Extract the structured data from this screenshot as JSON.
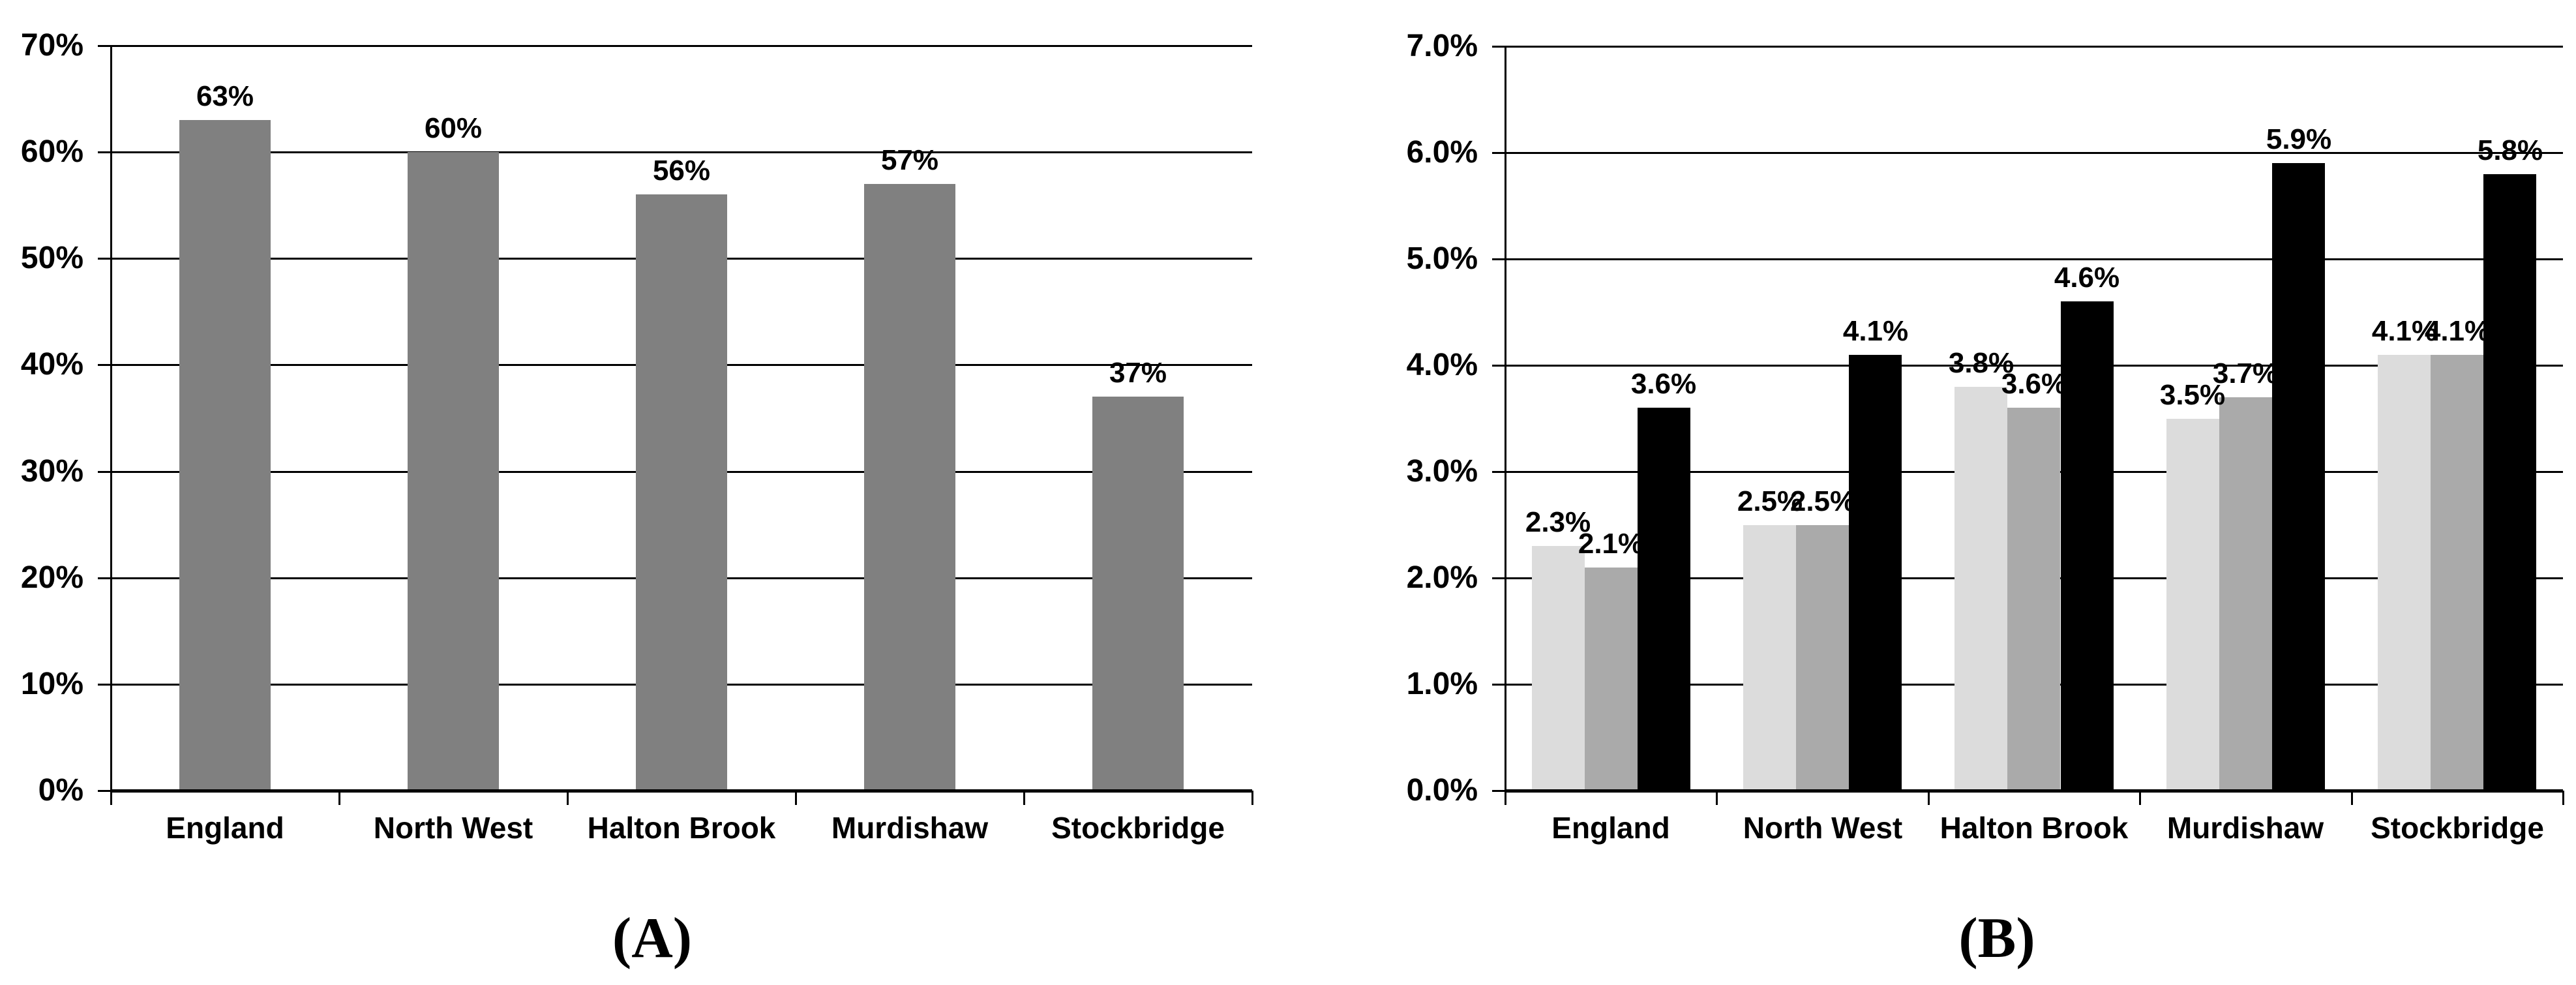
{
  "figure": {
    "background": "#FFFFFF",
    "text_color": "#000000",
    "axis_color": "#000000"
  },
  "chart_data": [
    {
      "panel": "A",
      "type": "bar",
      "title": "",
      "xlabel": "",
      "ylabel": "",
      "legend": "none",
      "grid": true,
      "caption": "(A)",
      "categories": [
        "England",
        "North West",
        "Halton Brook",
        "Murdishaw",
        "Stockbridge"
      ],
      "series": [
        {
          "name": "percentage",
          "color": "#808080",
          "values": [
            63,
            60,
            56,
            57,
            37
          ],
          "labels": [
            "63%",
            "60%",
            "56%",
            "57%",
            "37%"
          ]
        }
      ],
      "y_axis": {
        "min": 0,
        "max": 70,
        "step": 10,
        "tick_labels": [
          "0%",
          "10%",
          "20%",
          "30%",
          "40%",
          "50%",
          "60%",
          "70%"
        ]
      }
    },
    {
      "panel": "B",
      "type": "bar",
      "title": "",
      "xlabel": "",
      "ylabel": "",
      "legend": "none",
      "grid": true,
      "caption": "(B)",
      "categories": [
        "England",
        "North West",
        "Halton Brook",
        "Murdishaw",
        "Stockbridge"
      ],
      "series": [
        {
          "name": "series-1",
          "color": "#DCDCDC",
          "values": [
            2.3,
            2.5,
            3.8,
            3.5,
            4.1
          ],
          "labels": [
            "2.3%",
            "2.5%",
            "3.8%",
            "3.5%",
            "4.1%"
          ]
        },
        {
          "name": "series-2",
          "color": "#AAAAAA",
          "values": [
            2.1,
            2.5,
            3.6,
            3.7,
            4.1
          ],
          "labels": [
            "2.1%",
            "2.5%",
            "3.6%",
            "3.7%",
            "4.1%"
          ]
        },
        {
          "name": "series-3",
          "color": "#000000",
          "values": [
            3.6,
            4.1,
            4.6,
            5.9,
            5.8
          ],
          "labels": [
            "3.6%",
            "4.1%",
            "4.6%",
            "5.9%",
            "5.8%"
          ]
        }
      ],
      "y_axis": {
        "min": 0,
        "max": 7,
        "step": 1,
        "tick_labels": [
          "0.0%",
          "1.0%",
          "2.0%",
          "3.0%",
          "4.0%",
          "5.0%",
          "6.0%",
          "7.0%"
        ]
      }
    }
  ]
}
